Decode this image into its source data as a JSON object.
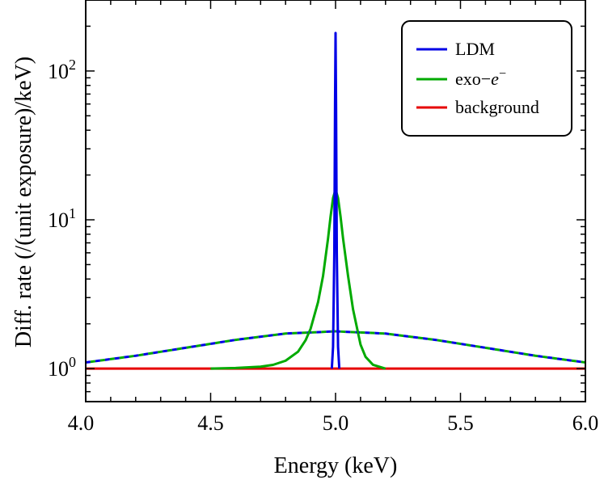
{
  "chart_data": {
    "type": "line",
    "xlabel": "Energy (keV)",
    "ylabel": "Diff. rate (/(unit exposure)/keV)",
    "xlim": [
      4.0,
      6.0
    ],
    "ylim": [
      0.6,
      300
    ],
    "yscale": "log",
    "grid": false,
    "legend_position": "top-right",
    "x_ticks": [
      "4.0",
      "4.5",
      "5.0",
      "5.5",
      "6.0"
    ],
    "y_ticks": [
      {
        "value": 1,
        "base": "10",
        "exp": "0"
      },
      {
        "value": 10,
        "base": "10",
        "exp": "1"
      },
      {
        "value": 100,
        "base": "10",
        "exp": "2"
      }
    ],
    "legend": [
      {
        "label": "LDM",
        "color": "#0000e6"
      },
      {
        "label_prefix": "exo−",
        "label_italic": "e",
        "label_sup": "−",
        "color": "#00aa00"
      },
      {
        "label": "background",
        "color": "#e60000"
      }
    ],
    "series": [
      {
        "name": "LDM",
        "color": "#0000e6",
        "style": "solid",
        "x": [
          4.985,
          4.99,
          4.995,
          4.998,
          5.0,
          5.002,
          5.005,
          5.01,
          5.015
        ],
        "y": [
          1.0,
          1.4,
          6.0,
          60,
          180,
          60,
          6.0,
          1.4,
          1.0
        ]
      },
      {
        "name": "exo−e⁻",
        "color": "#00aa00",
        "style": "solid",
        "x": [
          4.5,
          4.6,
          4.7,
          4.75,
          4.8,
          4.85,
          4.88,
          4.9,
          4.93,
          4.95,
          4.97,
          4.98,
          4.99,
          5.0,
          5.01,
          5.02,
          5.03,
          5.05,
          5.07,
          5.1,
          5.12,
          5.15,
          5.2
        ],
        "y": [
          1.0,
          1.01,
          1.03,
          1.06,
          1.13,
          1.3,
          1.55,
          1.85,
          2.8,
          4.2,
          7.5,
          10.5,
          14.0,
          16.0,
          14.0,
          10.5,
          7.5,
          4.2,
          2.5,
          1.45,
          1.2,
          1.06,
          1.0
        ]
      },
      {
        "name": "background",
        "color": "#e60000",
        "style": "solid",
        "x": [
          4.0,
          6.0
        ],
        "y": [
          1.0,
          1.0
        ]
      },
      {
        "name": "LDM (dashed)",
        "color": "#0000e6",
        "style": "dashed",
        "x": [
          4.0,
          4.2,
          4.4,
          4.6,
          4.8,
          5.0,
          5.2,
          5.4,
          5.6,
          5.8,
          6.0
        ],
        "y": [
          1.1,
          1.22,
          1.38,
          1.56,
          1.72,
          1.78,
          1.72,
          1.56,
          1.38,
          1.22,
          1.1
        ]
      },
      {
        "name": "exo−e⁻ (dashed)",
        "color": "#00aa00",
        "style": "dashed",
        "x": [
          4.0,
          4.2,
          4.4,
          4.6,
          4.8,
          5.0,
          5.2,
          5.4,
          5.6,
          5.8,
          6.0
        ],
        "y": [
          1.1,
          1.22,
          1.38,
          1.56,
          1.72,
          1.78,
          1.72,
          1.56,
          1.38,
          1.22,
          1.1
        ]
      }
    ]
  }
}
